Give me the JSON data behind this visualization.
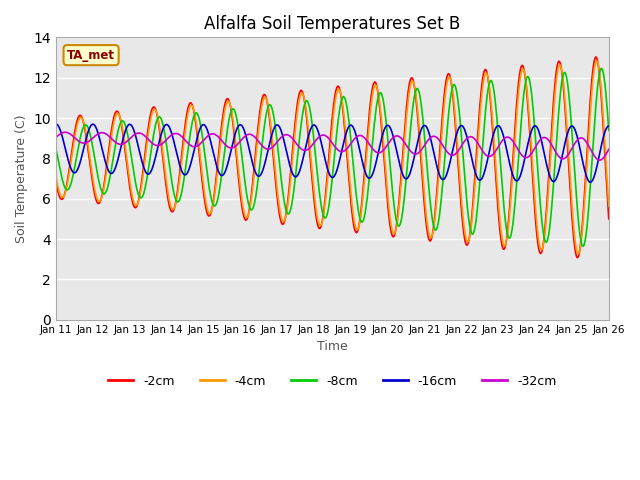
{
  "title": "Alfalfa Soil Temperatures Set B",
  "xlabel": "Time",
  "ylabel": "Soil Temperature (C)",
  "ylim": [
    0,
    14
  ],
  "yticks": [
    0,
    2,
    4,
    6,
    8,
    10,
    12,
    14
  ],
  "x_labels": [
    "Jan 11",
    "Jan 12",
    "Jan 13",
    "Jan 14",
    "Jan 15",
    "Jan 16",
    "Jan 17",
    "Jan 18",
    "Jan 19",
    "Jan 20",
    "Jan 21",
    "Jan 22",
    "Jan 23",
    "Jan 24",
    "Jan 25",
    "Jan 26"
  ],
  "background_color": "#e8e8e8",
  "legend_label": "TA_met",
  "series_labels": [
    "-2cm",
    "-4cm",
    "-8cm",
    "-16cm",
    "-32cm"
  ],
  "series_colors": [
    "#ff0000",
    "#ff9900",
    "#00cc00",
    "#0000cc",
    "#cc00cc"
  ],
  "linewidth": 1.2,
  "n_days": 15,
  "pts_per_day": 48
}
